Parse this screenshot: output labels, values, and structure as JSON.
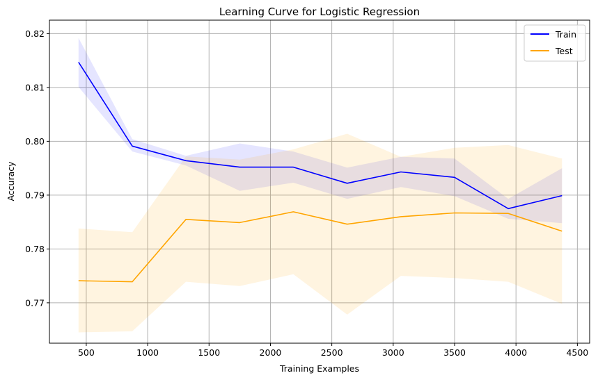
{
  "chart_data": {
    "type": "line",
    "title": "Learning Curve for Logistic Regression",
    "xlabel": "Training Examples",
    "ylabel": "Accuracy",
    "xlim": [
      200,
      4600
    ],
    "ylim": [
      0.7625,
      0.8225
    ],
    "xticks": [
      500,
      1000,
      1500,
      2000,
      2500,
      3000,
      3500,
      4000,
      4500
    ],
    "yticks": [
      0.77,
      0.78,
      0.79,
      0.8,
      0.81,
      0.82
    ],
    "ytick_labels": [
      "0.77",
      "0.78",
      "0.79",
      "0.80",
      "0.81",
      "0.82"
    ],
    "grid": true,
    "legend_position": "top-right",
    "x": [
      437,
      875,
      1312,
      1750,
      2187,
      2625,
      3062,
      3500,
      3937,
      4375
    ],
    "series": [
      {
        "name": "Train",
        "color": "#0000ff",
        "band_color": "#0000ff",
        "band_opacity": 0.1,
        "values": [
          0.8147,
          0.7991,
          0.7964,
          0.7952,
          0.7952,
          0.7922,
          0.7943,
          0.7933,
          0.7875,
          0.7899
        ],
        "upper": [
          0.8192,
          0.8004,
          0.7973,
          0.7996,
          0.7981,
          0.7951,
          0.7971,
          0.7968,
          0.7893,
          0.795
        ],
        "lower": [
          0.8101,
          0.7981,
          0.7955,
          0.7908,
          0.7923,
          0.7893,
          0.7915,
          0.7898,
          0.7856,
          0.7848
        ]
      },
      {
        "name": "Test",
        "color": "#ffa500",
        "band_color": "#ffa500",
        "band_opacity": 0.12,
        "values": [
          0.7741,
          0.7739,
          0.7855,
          0.7849,
          0.7869,
          0.7846,
          0.786,
          0.7867,
          0.7866,
          0.7833
        ],
        "upper": [
          0.7838,
          0.7831,
          0.7972,
          0.7966,
          0.7985,
          0.8014,
          0.7971,
          0.7988,
          0.7993,
          0.7968
        ],
        "lower": [
          0.7645,
          0.7647,
          0.7739,
          0.7731,
          0.7753,
          0.7678,
          0.775,
          0.7746,
          0.7739,
          0.7698
        ]
      }
    ]
  }
}
